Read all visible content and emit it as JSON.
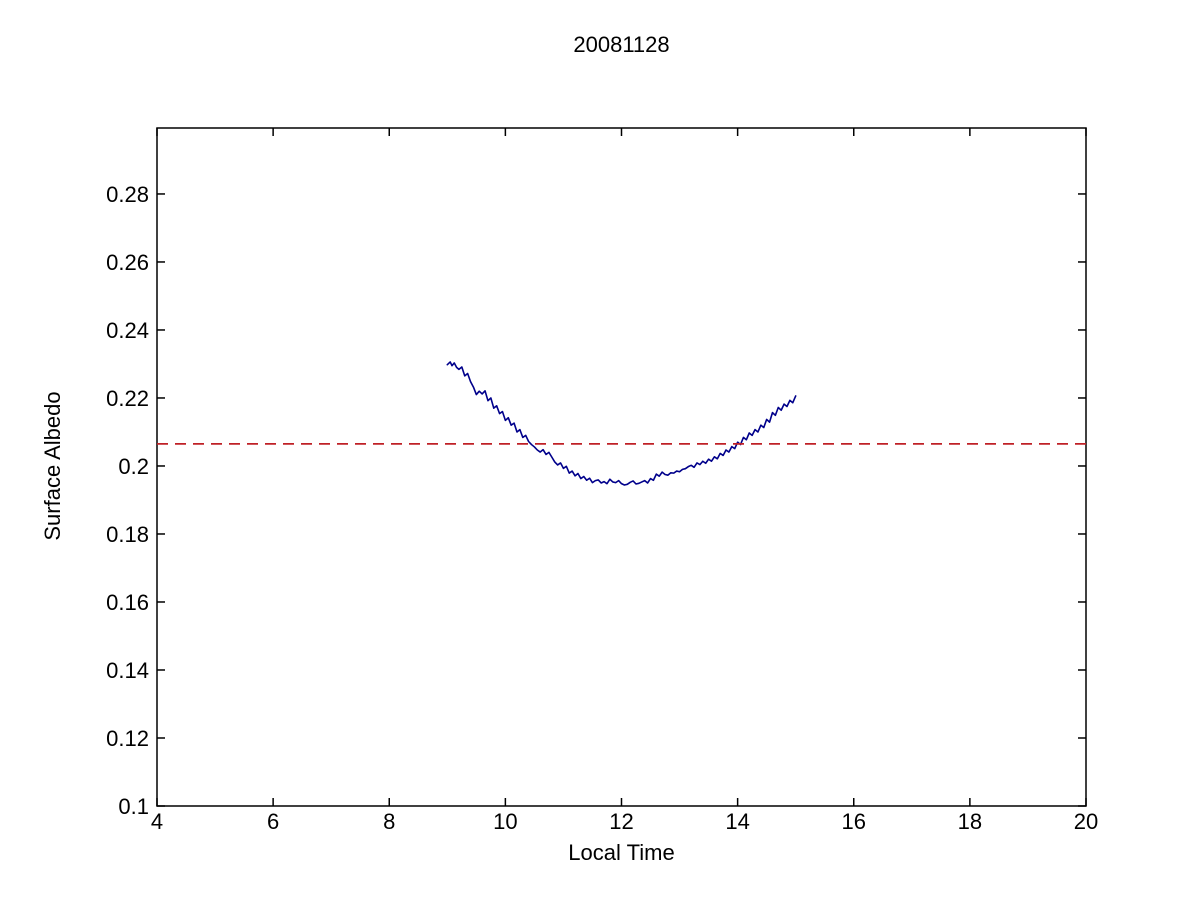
{
  "title": "20081128",
  "colors": {
    "background": "#ffffff",
    "axis": "#000000",
    "text": "#000000",
    "series_line": "#00008B",
    "reference_line": "#bf2026"
  },
  "chart_data": {
    "type": "line",
    "title": "20081128",
    "xlabel": "Local Time",
    "ylabel": "Surface Albedo",
    "xlim": [
      4,
      20
    ],
    "ylim": [
      0.1,
      0.2994
    ],
    "grid": false,
    "legend": "none",
    "xticks": [
      4,
      6,
      8,
      10,
      12,
      14,
      16,
      18,
      20
    ],
    "xtick_labels": [
      "4",
      "6",
      "8",
      "10",
      "12",
      "14",
      "16",
      "18",
      "20"
    ],
    "yticks": [
      0.1,
      0.12,
      0.14,
      0.16,
      0.18,
      0.2,
      0.22,
      0.24,
      0.26,
      0.28
    ],
    "ytick_labels": [
      "0.1",
      "0.12",
      "0.14",
      "0.16",
      "0.18",
      "0.2",
      "0.22",
      "0.24",
      "0.26",
      "0.28"
    ],
    "series": [
      {
        "name": "surface-albedo-diurnal",
        "type": "line",
        "color": "#00008B",
        "style": "solid",
        "x": [
          9.0,
          9.05,
          9.08,
          9.12,
          9.16,
          9.2,
          9.25,
          9.3,
          9.35,
          9.4,
          9.45,
          9.5,
          9.55,
          9.6,
          9.65,
          9.7,
          9.75,
          9.8,
          9.85,
          9.9,
          9.95,
          10.0,
          10.05,
          10.1,
          10.15,
          10.2,
          10.25,
          10.3,
          10.35,
          10.4,
          10.45,
          10.5,
          10.55,
          10.6,
          10.65,
          10.7,
          10.75,
          10.8,
          10.85,
          10.9,
          10.95,
          11.0,
          11.05,
          11.1,
          11.15,
          11.2,
          11.25,
          11.3,
          11.35,
          11.4,
          11.45,
          11.5,
          11.55,
          11.6,
          11.65,
          11.7,
          11.75,
          11.8,
          11.85,
          11.9,
          11.95,
          12.0,
          12.05,
          12.1,
          12.15,
          12.2,
          12.25,
          12.3,
          12.35,
          12.4,
          12.45,
          12.5,
          12.55,
          12.6,
          12.65,
          12.7,
          12.75,
          12.8,
          12.85,
          12.9,
          12.95,
          13.0,
          13.05,
          13.1,
          13.15,
          13.2,
          13.25,
          13.3,
          13.35,
          13.4,
          13.45,
          13.5,
          13.55,
          13.6,
          13.65,
          13.7,
          13.75,
          13.8,
          13.85,
          13.9,
          13.95,
          14.0,
          14.05,
          14.1,
          14.15,
          14.2,
          14.25,
          14.3,
          14.35,
          14.4,
          14.45,
          14.5,
          14.55,
          14.6,
          14.65,
          14.7,
          14.75,
          14.8,
          14.85,
          14.9,
          14.95,
          15.0
        ],
        "y": [
          0.2298,
          0.2306,
          0.2295,
          0.2303,
          0.229,
          0.2284,
          0.2291,
          0.2265,
          0.2272,
          0.2248,
          0.2232,
          0.221,
          0.222,
          0.2212,
          0.2221,
          0.2192,
          0.22,
          0.217,
          0.2177,
          0.2154,
          0.216,
          0.2134,
          0.2142,
          0.212,
          0.2126,
          0.21,
          0.2107,
          0.2084,
          0.209,
          0.2072,
          0.2063,
          0.2056,
          0.2047,
          0.2041,
          0.2048,
          0.2034,
          0.204,
          0.2026,
          0.2012,
          0.2003,
          0.2009,
          0.1993,
          0.1999,
          0.1979,
          0.1985,
          0.1971,
          0.1978,
          0.1963,
          0.1969,
          0.1958,
          0.1964,
          0.1951,
          0.1957,
          0.1959,
          0.195,
          0.1954,
          0.1948,
          0.1961,
          0.1953,
          0.1951,
          0.1957,
          0.1948,
          0.1944,
          0.1946,
          0.1952,
          0.1956,
          0.1947,
          0.1949,
          0.1953,
          0.1957,
          0.195,
          0.1963,
          0.1958,
          0.1976,
          0.197,
          0.1982,
          0.1975,
          0.1973,
          0.198,
          0.1979,
          0.1985,
          0.1983,
          0.199,
          0.1992,
          0.1998,
          0.2002,
          0.1996,
          0.2009,
          0.2004,
          0.2014,
          0.2008,
          0.202,
          0.2014,
          0.2027,
          0.2021,
          0.2037,
          0.2031,
          0.2047,
          0.2041,
          0.2057,
          0.2051,
          0.207,
          0.2063,
          0.2084,
          0.2077,
          0.2097,
          0.209,
          0.2107,
          0.21,
          0.212,
          0.2113,
          0.2137,
          0.2129,
          0.2157,
          0.2149,
          0.2172,
          0.2164,
          0.2182,
          0.2175,
          0.2193,
          0.2186,
          0.2206
        ]
      },
      {
        "name": "daily-mean-reference",
        "type": "hline",
        "color": "#bf2026",
        "style": "dashed",
        "y": 0.2065
      }
    ]
  }
}
